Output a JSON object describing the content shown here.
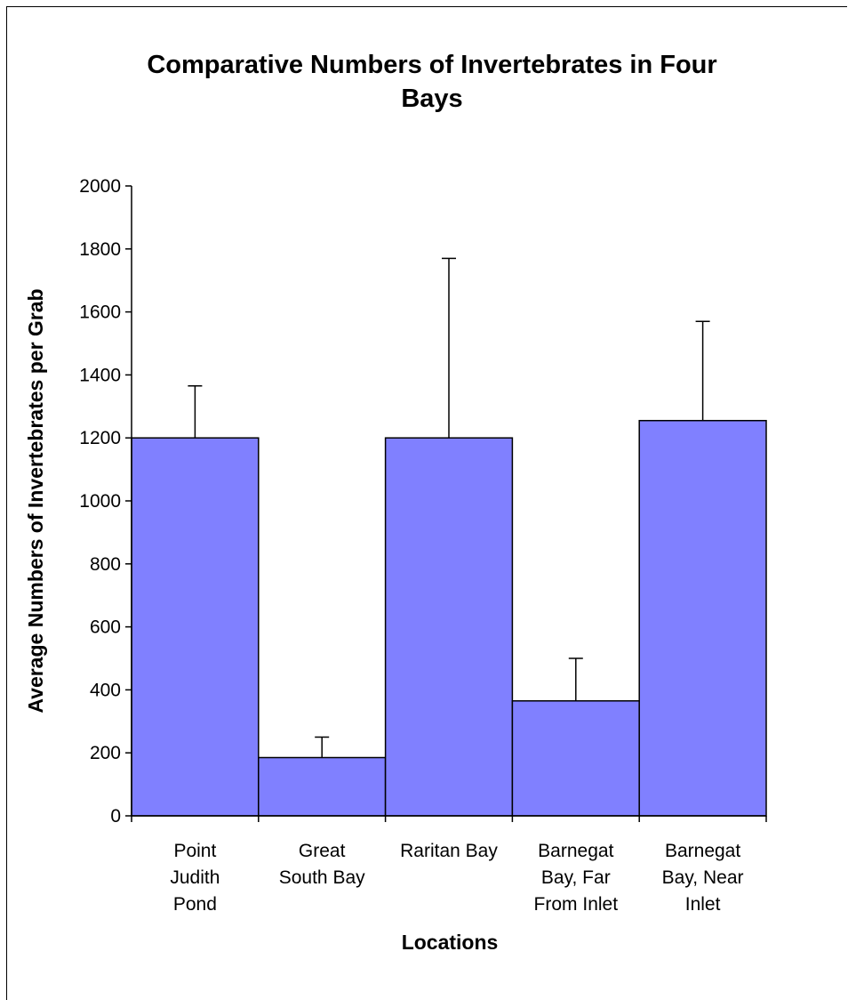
{
  "chart_data": {
    "type": "bar",
    "title_lines": [
      "Comparative Numbers of Invertebrates in Four",
      "Bays"
    ],
    "xlabel": "Locations",
    "ylabel": "Average Numbers of Invertebrates per Grab",
    "ylim": [
      0,
      2000
    ],
    "yticks": [
      "0",
      "200",
      "400",
      "600",
      "800",
      "1000",
      "1200",
      "1400",
      "1600",
      "1800",
      "2000"
    ],
    "categories": [
      [
        "Point",
        "Judith",
        "Pond"
      ],
      [
        "Great",
        "South Bay"
      ],
      [
        "Raritan Bay"
      ],
      [
        "Barnegat",
        "Bay, Far",
        "From Inlet"
      ],
      [
        "Barnegat",
        "Bay, Near",
        "Inlet"
      ]
    ],
    "values": [
      1200,
      185,
      1200,
      365,
      1255
    ],
    "error_upper": [
      1365,
      250,
      1770,
      500,
      1570
    ],
    "bar_color": "#8080ff",
    "grid": false,
    "legend": "none"
  }
}
